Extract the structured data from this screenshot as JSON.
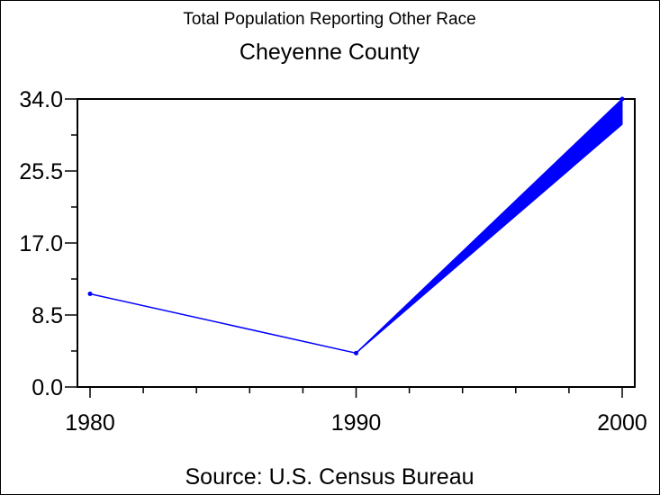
{
  "chart_data": {
    "type": "line",
    "title": "Total Population Reporting Other Race",
    "subtitle": "Cheyenne County",
    "footnote": "Source: U.S. Census Bureau",
    "xlabel": "",
    "ylabel": "",
    "x": [
      1980,
      1990,
      2000
    ],
    "series": [
      {
        "name": "Other Race",
        "values": [
          11,
          4,
          34
        ],
        "color": "#0000ff"
      }
    ],
    "band_2000": {
      "low": 31,
      "high": 34
    },
    "xlim": [
      1980,
      2000
    ],
    "ylim": [
      0,
      34
    ],
    "x_ticks": [
      "1980",
      "1990",
      "2000"
    ],
    "x_minor_step": 2,
    "y_ticks": [
      "0.0",
      "8.5",
      "17.0",
      "25.5",
      "34.0"
    ],
    "y_minor_step": 4.25,
    "grid": false
  }
}
